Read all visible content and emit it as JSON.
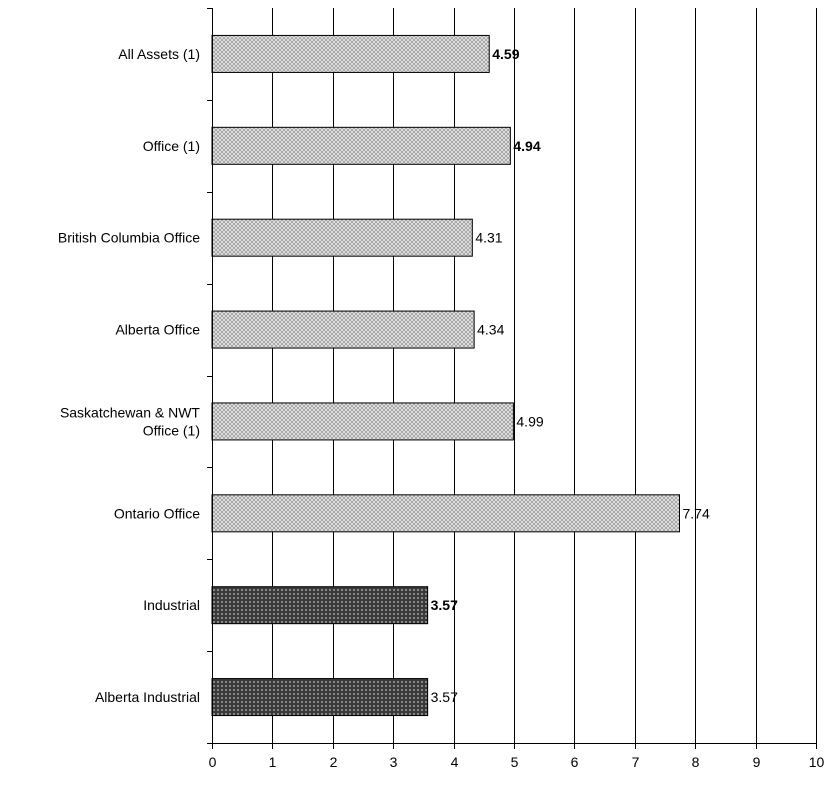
{
  "chart_data": {
    "type": "bar",
    "orientation": "horizontal",
    "categories": [
      "All Assets (1)",
      "Office (1)",
      "British Columbia Office",
      "Alberta Office",
      "Saskatchewan & NWT Office (1)",
      "Ontario Office",
      "Industrial",
      "Alberta Industrial"
    ],
    "category_lines": [
      [
        "All Assets (1)"
      ],
      [
        "Office (1)"
      ],
      [
        "British Columbia Office"
      ],
      [
        "Alberta Office"
      ],
      [
        "Saskatchewan & NWT",
        "Office (1)"
      ],
      [
        "Ontario Office"
      ],
      [
        "Industrial"
      ],
      [
        "Alberta Industrial"
      ]
    ],
    "values": [
      4.59,
      4.94,
      4.31,
      4.34,
      4.99,
      7.74,
      3.57,
      3.57
    ],
    "value_labels": [
      "4.59",
      "4.94",
      "4.31",
      "4.34",
      "4.99",
      "7.74",
      "3.57",
      "3.57"
    ],
    "bold_labels": [
      true,
      true,
      false,
      false,
      false,
      false,
      true,
      false
    ],
    "bar_style": [
      "office",
      "office",
      "office",
      "office",
      "office",
      "office",
      "industrial",
      "industrial"
    ],
    "xlim": [
      0,
      10
    ],
    "xticks": [
      "0",
      "1",
      "2",
      "3",
      "4",
      "5",
      "6",
      "7",
      "8",
      "9",
      "10"
    ],
    "grid": "vertical",
    "title": "",
    "xlabel": "",
    "ylabel": "",
    "colors": {
      "office_fill": "#9a9a9a",
      "office_pattern": "#e6e6e6",
      "industrial_fill": "#3a3a3a",
      "industrial_pattern": "#bdbdbd",
      "grid": "#000000"
    }
  }
}
